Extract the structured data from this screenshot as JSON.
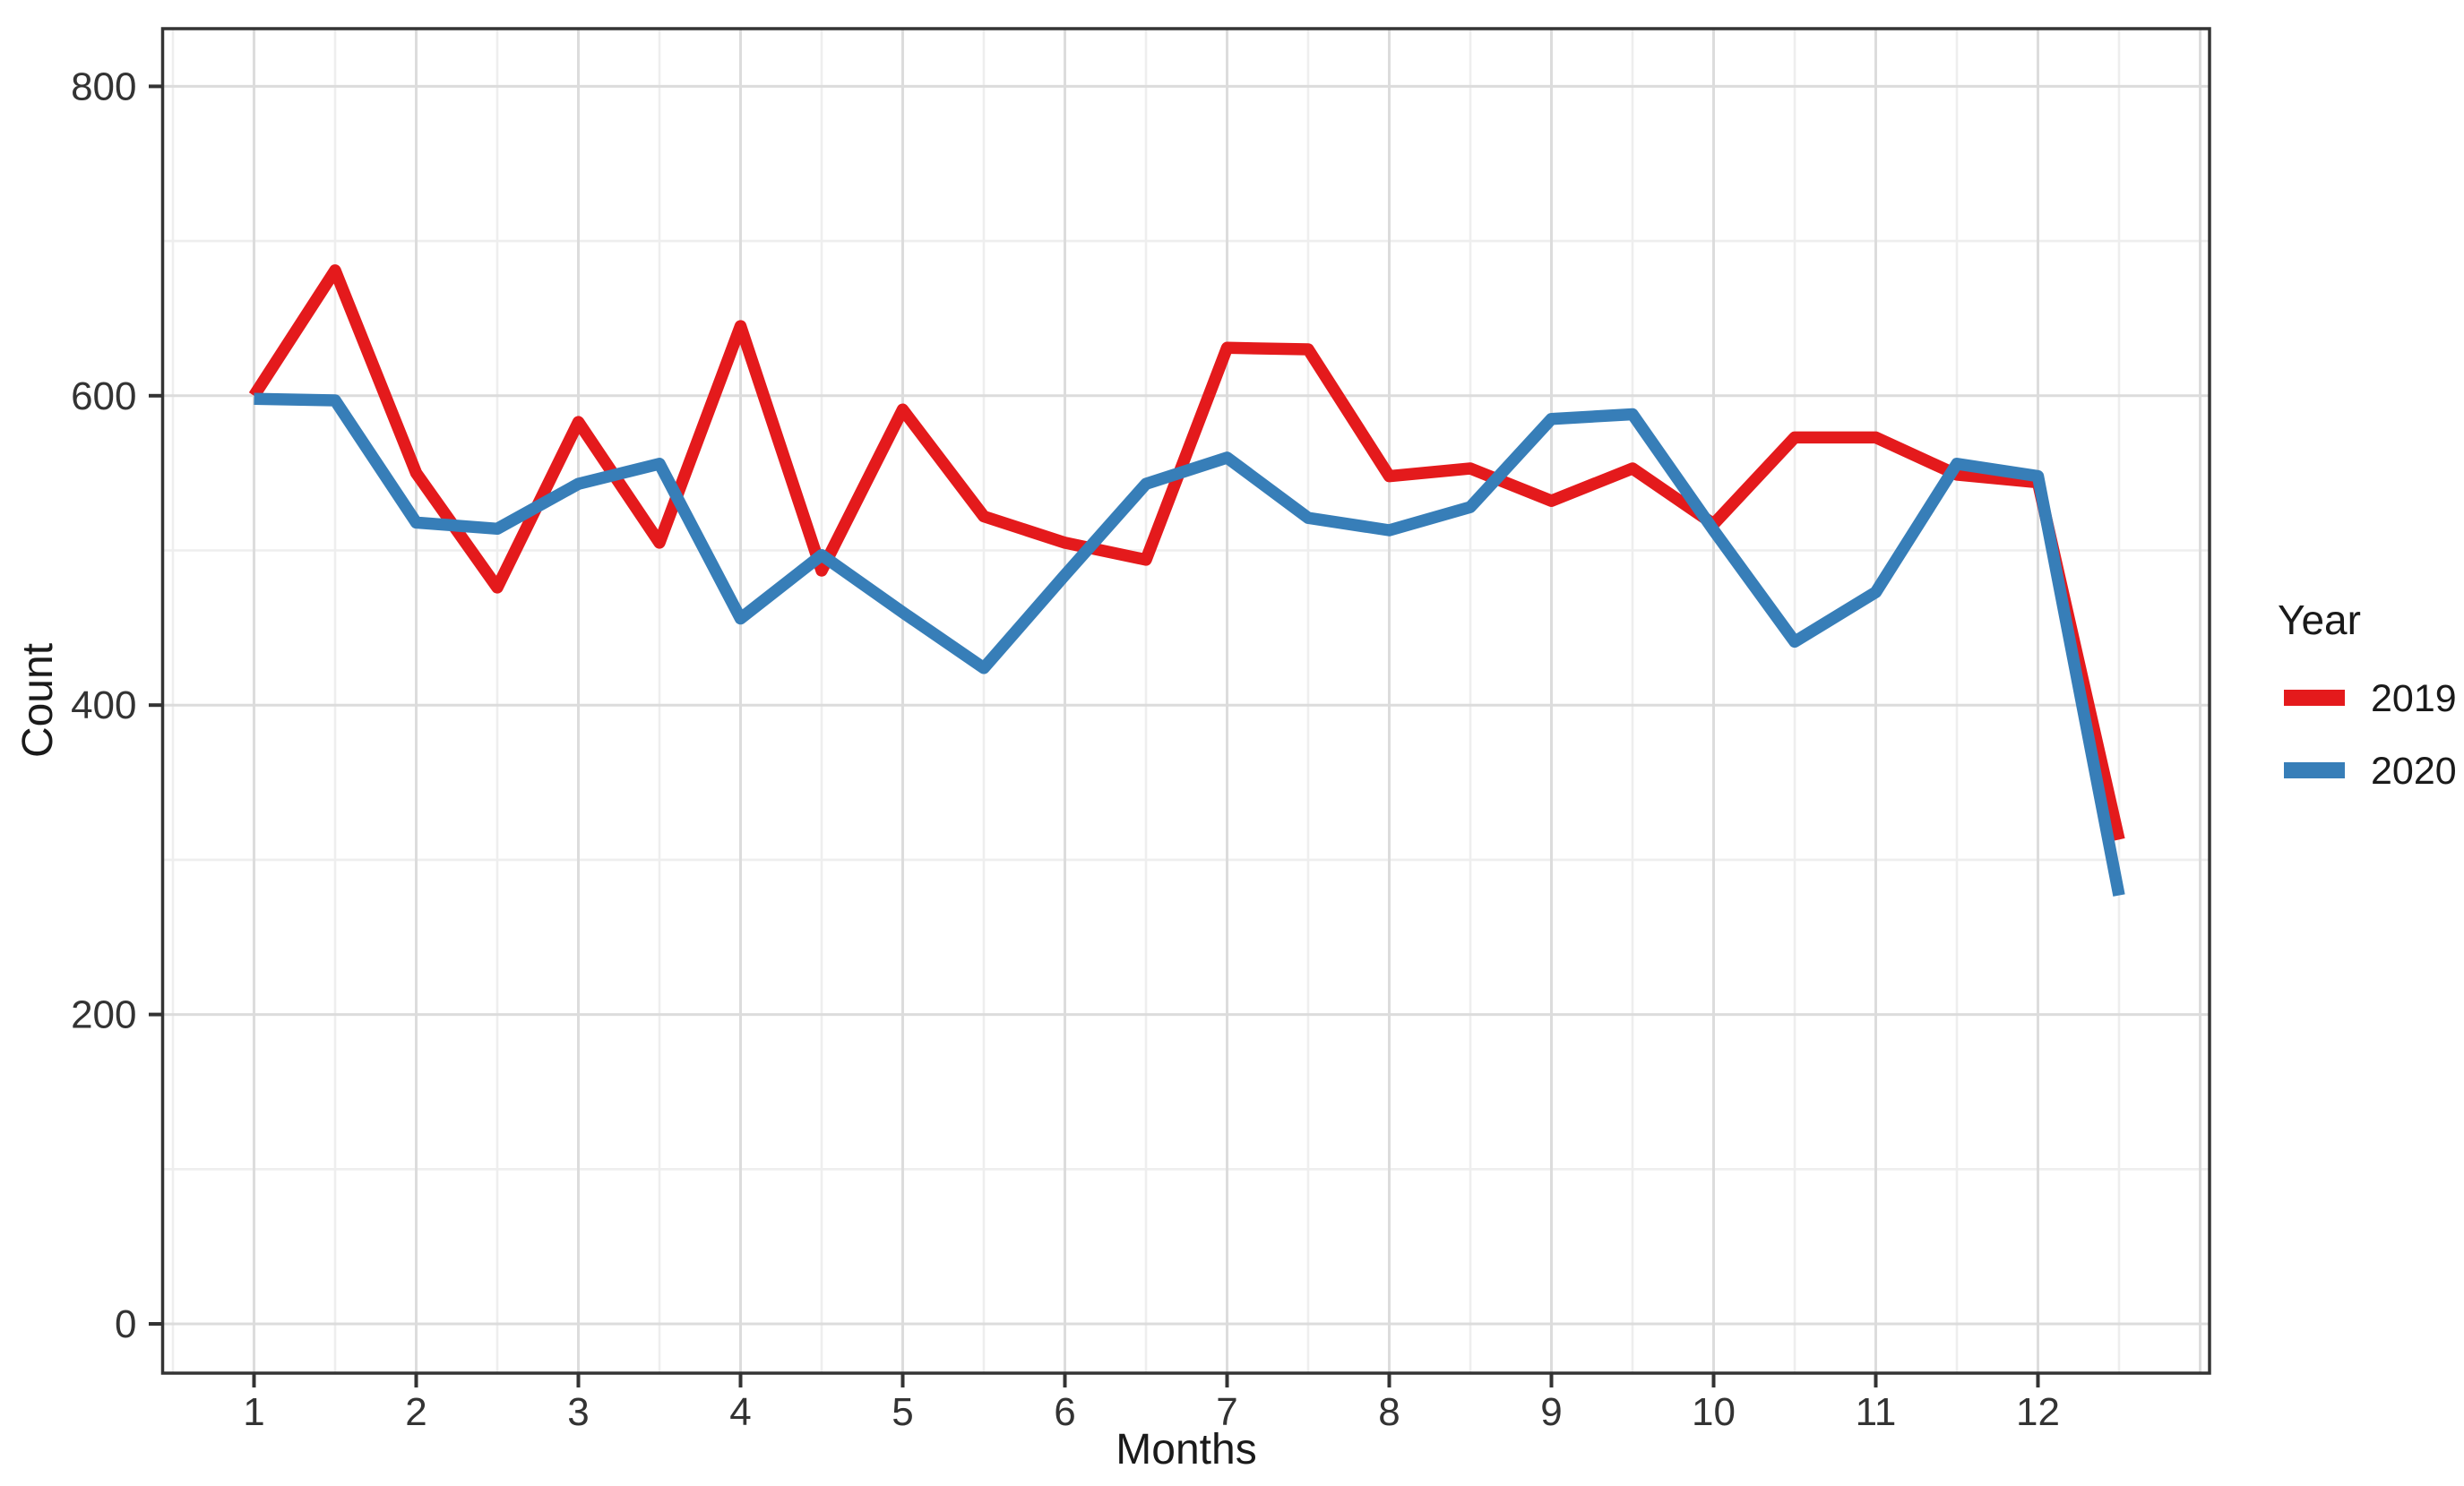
{
  "chart_data": {
    "type": "line",
    "title": "",
    "xlabel": "Months",
    "ylabel": "Count",
    "x": [
      1,
      1.5,
      2,
      2.5,
      3,
      3.5,
      4,
      4.5,
      5,
      5.5,
      6,
      6.5,
      7,
      7.5,
      8,
      8.5,
      9,
      9.5,
      10,
      10.5,
      11,
      11.5,
      12,
      12.5
    ],
    "series": [
      {
        "name": "2019",
        "color": "#E41A1C",
        "values": [
          600,
          681,
          550,
          476,
          583,
          505,
          645,
          487,
          591,
          522,
          505,
          494,
          631,
          630,
          548,
          553,
          532,
          553,
          517,
          573,
          573,
          549,
          544,
          313
        ]
      },
      {
        "name": "2020",
        "color": "#377EB8",
        "values": [
          598,
          597,
          518,
          514,
          543,
          556,
          456,
          497,
          460,
          424,
          484,
          543,
          560,
          521,
          513,
          528,
          585,
          588,
          513,
          441,
          473,
          556,
          548,
          277
        ]
      }
    ],
    "legend": {
      "title": "Year",
      "position": "right"
    },
    "x_ticks": [
      1,
      2,
      3,
      4,
      5,
      6,
      7,
      8,
      9,
      10,
      11,
      12
    ],
    "y_ticks": [
      0,
      200,
      400,
      600,
      800
    ],
    "y_minor": [
      100,
      300,
      500,
      700
    ],
    "x_major_grid": [
      1,
      2,
      3,
      4,
      5,
      6,
      7,
      8,
      9,
      10,
      11,
      12,
      13
    ],
    "x_minor_grid": [
      0.5,
      1.5,
      2.5,
      3.5,
      4.5,
      5.5,
      6.5,
      7.5,
      8.5,
      9.5,
      10.5,
      11.5,
      12.5
    ],
    "xlim": [
      0.44,
      13.06
    ],
    "ylim": [
      -32,
      838
    ],
    "grid": {
      "major": true,
      "minor": true
    }
  },
  "theme": {
    "background": "#ffffff",
    "panel_background": "#ffffff",
    "panel_border": "#343434",
    "grid_major": "#dcdcdc",
    "grid_minor": "#eeeeee",
    "tick_color": "#333333",
    "tick_label_color": "#333333",
    "title_color": "#1a1a1a",
    "legend_text_color": "#1a1a1a"
  }
}
